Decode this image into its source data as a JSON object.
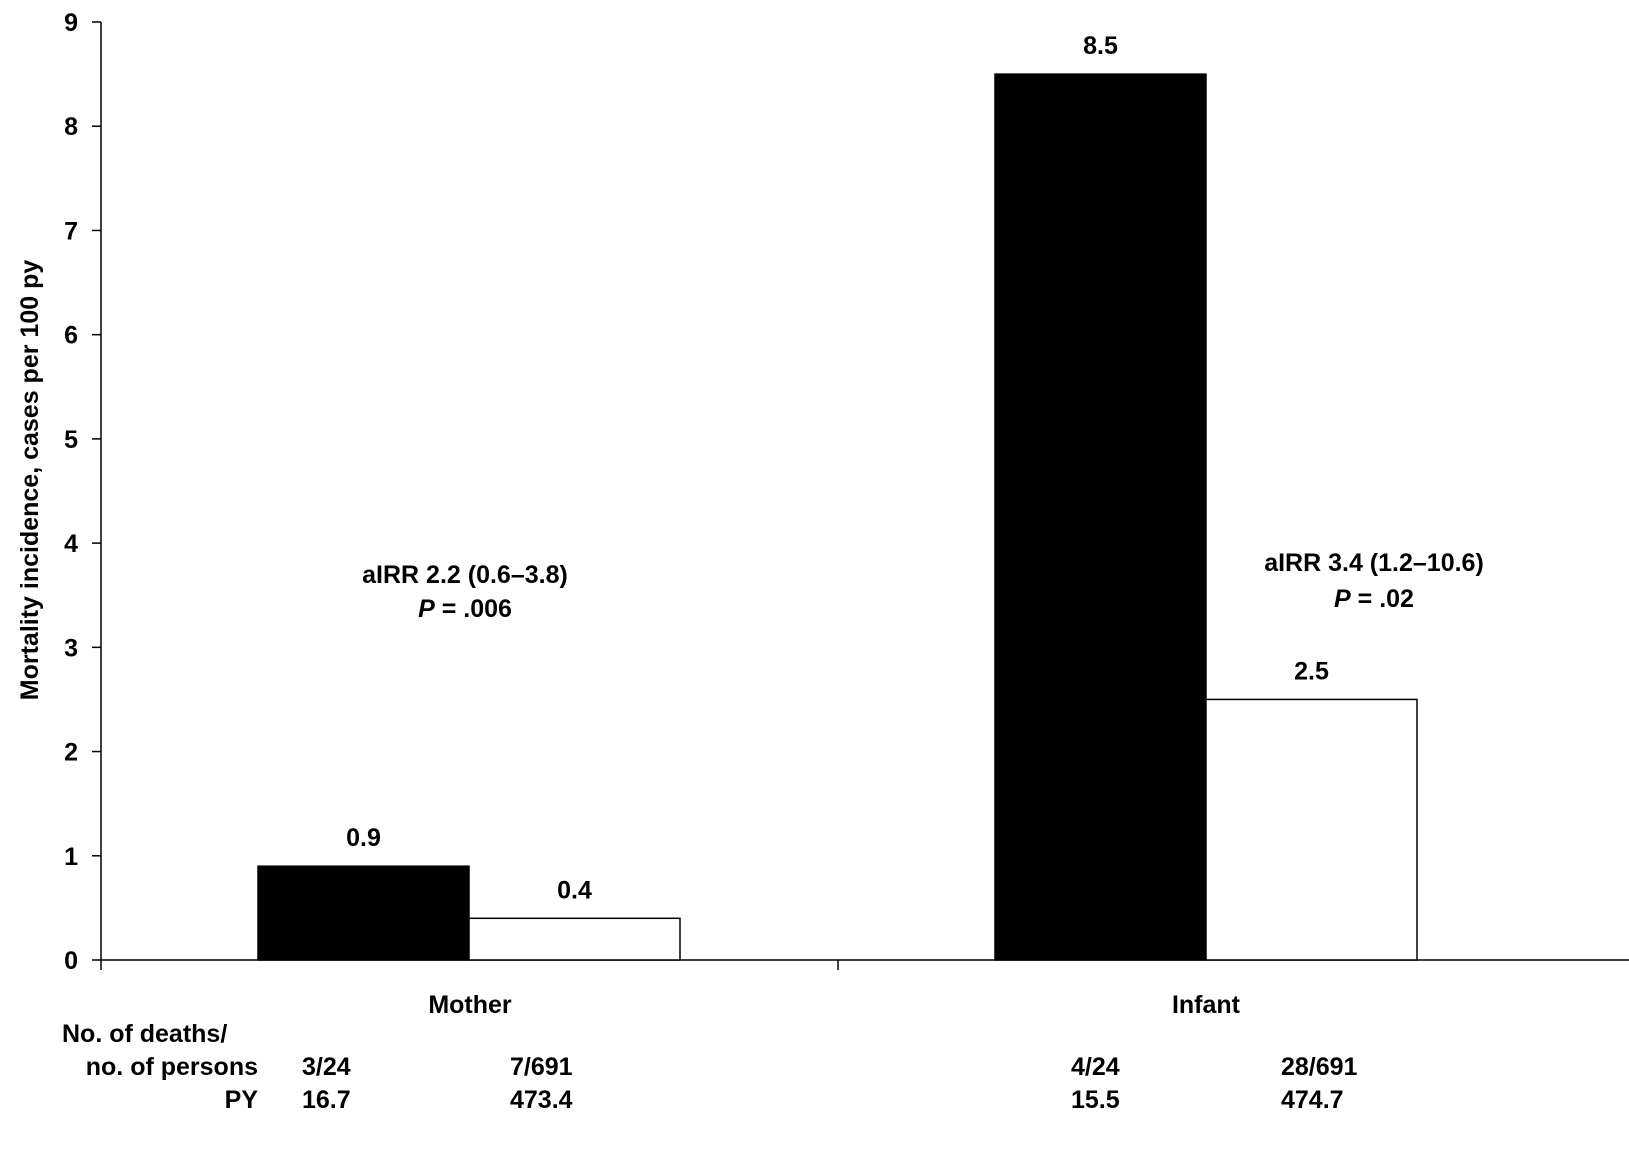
{
  "chart_data": {
    "type": "bar",
    "ylabel": "Mortality incidence, cases per 100 py",
    "ylim": [
      0,
      9
    ],
    "yticks": [
      "0",
      "1",
      "2",
      "3",
      "4",
      "5",
      "6",
      "7",
      "8",
      "9"
    ],
    "categories": [
      "Mother",
      "Infant"
    ],
    "series": [
      {
        "color": "#000000",
        "values": [
          0.9,
          8.5
        ],
        "labels": [
          "0.9",
          "8.5"
        ]
      },
      {
        "color": "#ffffff",
        "values": [
          0.4,
          2.5
        ],
        "labels": [
          "0.4",
          "2.5"
        ]
      }
    ],
    "annotations": [
      {
        "group": "Mother",
        "line1": "aIRR 2.2 (0.6–3.8)",
        "p_prefix": "P",
        "p_value": " = .006"
      },
      {
        "group": "Infant",
        "line1": "aIRR 3.4 (1.2–10.6)",
        "p_prefix": "P",
        "p_value": " = .02"
      }
    ],
    "table": {
      "row_labels": [
        "No. of deaths/",
        "no. of persons",
        "PY"
      ],
      "deaths": [
        "3/24",
        "7/691",
        "4/24",
        "28/691"
      ],
      "py": [
        "16.7",
        "473.4",
        "15.5",
        "474.7"
      ]
    }
  }
}
